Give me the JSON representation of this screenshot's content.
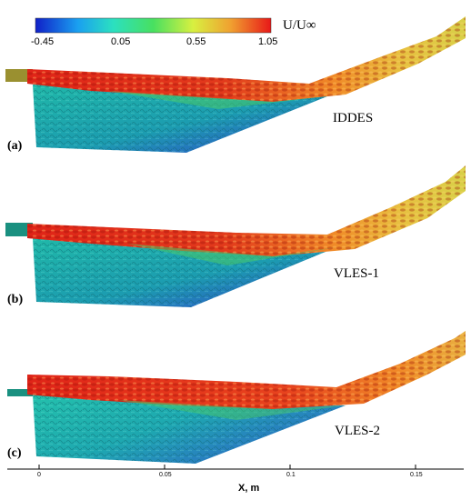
{
  "colorbar": {
    "title": "U/U∞",
    "ticks": [
      "-0.45",
      "0.05",
      "0.55",
      "1.05"
    ],
    "colors": [
      "#1020c8",
      "#1aa0f0",
      "#2be0c0",
      "#48e060",
      "#d8f040",
      "#f0a030",
      "#e81818"
    ]
  },
  "panels": [
    {
      "tag": "(a)",
      "method": "IDDES"
    },
    {
      "tag": "(b)",
      "method": "VLES-1"
    },
    {
      "tag": "(c)",
      "method": "VLES-2"
    }
  ],
  "x_axis": {
    "ticks": [
      "0",
      "0.05",
      "0.1",
      "0.15"
    ],
    "title": "X, m"
  },
  "palette": {
    "interior": "#1ab3a3",
    "interior_dark": "#2a5fc0",
    "shear_red": "#e02418",
    "shear_orange": "#f08a28",
    "shear_yellow": "#e8d840",
    "shear_green": "#5ac850",
    "plate_teal": "#1a9080",
    "plate_olive": "#9a9030"
  }
}
